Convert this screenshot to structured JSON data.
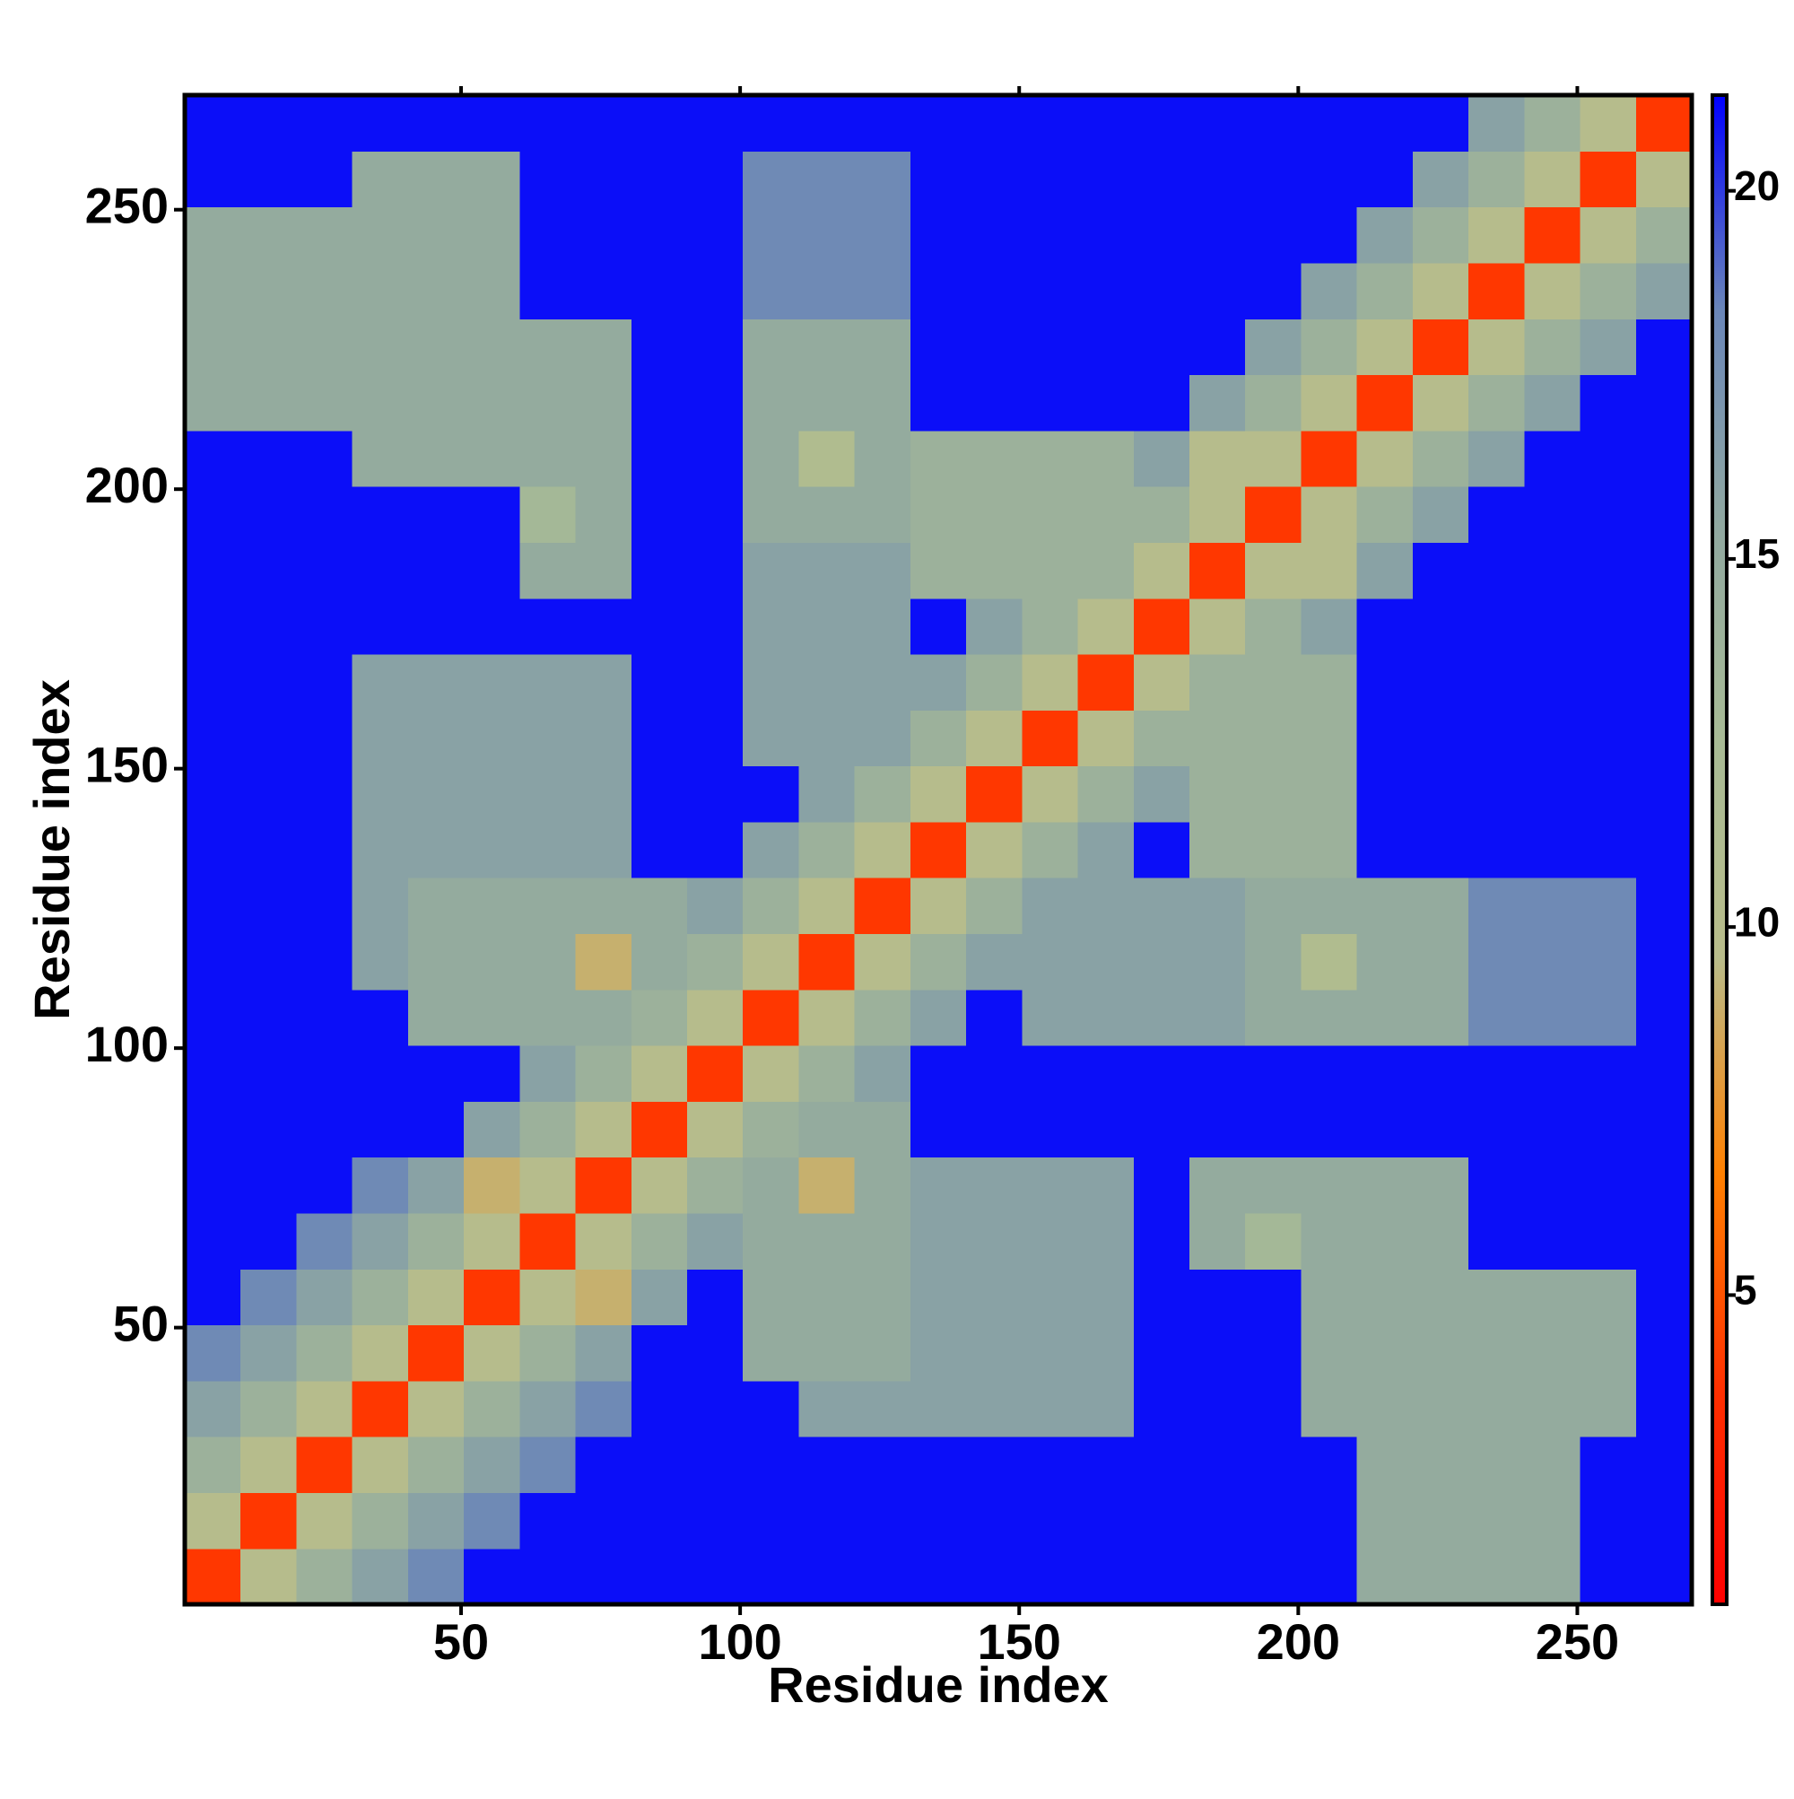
{
  "chart_data": {
    "type": "heatmap",
    "xlabel": "Residue index",
    "ylabel": "Residue index",
    "bins": [
      0.5,
      10.5,
      20.5,
      30.5,
      40.5,
      50.5,
      60.5,
      70.5,
      80.5,
      90.5,
      100.5,
      110.5,
      120.5,
      130.5,
      140.5,
      150.5,
      160.5,
      170.5,
      180.5,
      190.5,
      200.5,
      210.5,
      220.5,
      230.5,
      240.5,
      250.5,
      260.5,
      270.5
    ],
    "xlim": [
      0.5,
      270.5
    ],
    "ylim": [
      0.5,
      270.5
    ],
    "xticks": [
      50,
      100,
      150,
      200,
      250
    ],
    "yticks": [
      50,
      100,
      150,
      200,
      250
    ],
    "clim": [
      0.8,
      21.3
    ],
    "cticks": [
      5,
      10,
      15,
      20
    ],
    "colorscale": [
      "#ff0000",
      "#ff3000",
      "#ff8000",
      "#b8bc8a",
      "#a8bb95",
      "#90a8a0",
      "#6a86b8",
      "#0000ff"
    ],
    "z": [
      [
        4,
        10,
        14,
        16,
        18,
        21,
        21,
        21,
        21,
        21,
        21,
        21,
        21,
        21,
        21,
        21,
        21,
        21,
        21,
        21,
        21,
        15,
        15,
        15,
        15,
        21,
        21
      ],
      [
        10,
        4,
        10,
        14,
        16,
        18,
        21,
        21,
        21,
        21,
        21,
        21,
        21,
        21,
        21,
        21,
        21,
        21,
        21,
        21,
        21,
        15,
        15,
        15,
        15,
        21,
        21
      ],
      [
        14,
        10,
        4,
        10,
        14,
        16,
        18,
        21,
        21,
        21,
        21,
        21,
        21,
        21,
        21,
        21,
        21,
        21,
        21,
        21,
        21,
        15,
        15,
        15,
        15,
        21,
        21
      ],
      [
        16,
        14,
        10,
        4,
        10,
        14,
        16,
        18,
        21,
        21,
        21,
        16,
        16,
        16,
        16,
        16,
        16,
        21,
        21,
        21,
        15,
        15,
        15,
        15,
        15,
        15,
        21
      ],
      [
        18,
        16,
        14,
        10,
        4,
        10,
        14,
        16,
        21,
        21,
        15,
        15,
        15,
        16,
        16,
        16,
        16,
        21,
        21,
        21,
        15,
        15,
        15,
        15,
        15,
        15,
        21
      ],
      [
        21,
        18,
        16,
        14,
        10,
        4,
        10,
        9,
        16,
        21,
        15,
        15,
        15,
        16,
        16,
        16,
        16,
        21,
        21,
        21,
        15,
        15,
        15,
        15,
        15,
        15,
        21
      ],
      [
        21,
        21,
        18,
        16,
        14,
        10,
        4,
        10,
        14,
        16,
        15,
        15,
        15,
        16,
        16,
        16,
        16,
        21,
        15,
        13,
        15,
        15,
        15,
        21,
        21,
        21,
        21
      ],
      [
        21,
        21,
        21,
        18,
        16,
        9,
        10,
        4,
        10,
        14,
        15,
        9,
        15,
        16,
        16,
        16,
        16,
        21,
        15,
        15,
        15,
        15,
        15,
        21,
        21,
        21,
        21
      ],
      [
        21,
        21,
        21,
        21,
        21,
        16,
        14,
        10,
        4,
        10,
        14,
        15,
        15,
        21,
        21,
        21,
        21,
        21,
        21,
        21,
        21,
        21,
        21,
        21,
        21,
        21,
        21
      ],
      [
        21,
        21,
        21,
        21,
        21,
        21,
        16,
        14,
        10,
        4,
        10,
        14,
        16,
        21,
        21,
        21,
        21,
        21,
        21,
        21,
        21,
        21,
        21,
        21,
        21,
        21,
        21
      ],
      [
        21,
        21,
        21,
        21,
        15,
        15,
        15,
        15,
        14,
        10,
        4,
        10,
        14,
        16,
        21,
        16,
        16,
        16,
        16,
        15,
        15,
        15,
        15,
        18,
        18,
        18,
        21
      ],
      [
        21,
        21,
        21,
        16,
        15,
        15,
        15,
        9,
        15,
        14,
        10,
        4,
        10,
        14,
        16,
        16,
        16,
        16,
        16,
        15,
        11,
        15,
        15,
        18,
        18,
        18,
        21
      ],
      [
        21,
        21,
        21,
        16,
        15,
        15,
        15,
        15,
        15,
        16,
        14,
        10,
        4,
        10,
        14,
        16,
        16,
        16,
        16,
        15,
        15,
        15,
        15,
        18,
        18,
        18,
        21
      ],
      [
        21,
        21,
        21,
        16,
        16,
        16,
        16,
        16,
        21,
        21,
        16,
        14,
        10,
        4,
        10,
        14,
        16,
        21,
        14,
        14,
        14,
        21,
        21,
        21,
        21,
        21,
        21
      ],
      [
        21,
        21,
        21,
        16,
        16,
        16,
        16,
        16,
        21,
        21,
        21,
        16,
        14,
        10,
        4,
        10,
        14,
        16,
        14,
        14,
        14,
        21,
        21,
        21,
        21,
        21,
        21
      ],
      [
        21,
        21,
        21,
        16,
        16,
        16,
        16,
        16,
        21,
        21,
        16,
        16,
        16,
        14,
        10,
        4,
        10,
        14,
        14,
        14,
        14,
        21,
        21,
        21,
        21,
        21,
        21
      ],
      [
        21,
        21,
        21,
        16,
        16,
        16,
        16,
        16,
        21,
        21,
        16,
        16,
        16,
        16,
        14,
        10,
        4,
        10,
        14,
        14,
        14,
        21,
        21,
        21,
        21,
        21,
        21
      ],
      [
        21,
        21,
        21,
        21,
        21,
        21,
        21,
        21,
        21,
        21,
        16,
        16,
        16,
        21,
        16,
        14,
        10,
        4,
        10,
        14,
        16,
        21,
        21,
        21,
        21,
        21,
        21
      ],
      [
        21,
        21,
        21,
        21,
        21,
        21,
        15,
        15,
        21,
        21,
        16,
        16,
        16,
        14,
        14,
        14,
        14,
        10,
        4,
        10,
        10,
        16,
        21,
        21,
        21,
        21,
        21
      ],
      [
        21,
        21,
        21,
        21,
        21,
        21,
        13,
        15,
        21,
        21,
        15,
        15,
        15,
        14,
        14,
        14,
        14,
        14,
        10,
        4,
        10,
        14,
        16,
        21,
        21,
        21,
        21
      ],
      [
        21,
        21,
        21,
        15,
        15,
        15,
        15,
        15,
        21,
        21,
        15,
        11,
        15,
        14,
        14,
        14,
        14,
        16,
        10,
        10,
        4,
        10,
        14,
        16,
        21,
        21,
        21
      ],
      [
        15,
        15,
        15,
        15,
        15,
        15,
        15,
        15,
        21,
        21,
        15,
        15,
        15,
        21,
        21,
        21,
        21,
        21,
        16,
        14,
        10,
        4,
        10,
        14,
        16,
        21,
        21
      ],
      [
        15,
        15,
        15,
        15,
        15,
        15,
        15,
        15,
        21,
        21,
        15,
        15,
        15,
        21,
        21,
        21,
        21,
        21,
        21,
        16,
        14,
        10,
        4,
        10,
        14,
        16,
        21
      ],
      [
        15,
        15,
        15,
        15,
        15,
        15,
        21,
        21,
        21,
        21,
        18,
        18,
        18,
        21,
        21,
        21,
        21,
        21,
        21,
        21,
        16,
        14,
        10,
        4,
        10,
        14,
        16
      ],
      [
        15,
        15,
        15,
        15,
        15,
        15,
        21,
        21,
        21,
        21,
        18,
        18,
        18,
        21,
        21,
        21,
        21,
        21,
        21,
        21,
        21,
        16,
        14,
        10,
        4,
        10,
        14
      ],
      [
        21,
        21,
        21,
        15,
        15,
        15,
        21,
        21,
        21,
        21,
        18,
        18,
        18,
        21,
        21,
        21,
        21,
        21,
        21,
        21,
        21,
        21,
        16,
        14,
        10,
        4,
        10
      ],
      [
        21,
        21,
        21,
        21,
        21,
        21,
        21,
        21,
        21,
        21,
        21,
        21,
        21,
        21,
        21,
        21,
        21,
        21,
        21,
        21,
        21,
        21,
        21,
        16,
        14,
        10,
        4
      ]
    ]
  }
}
